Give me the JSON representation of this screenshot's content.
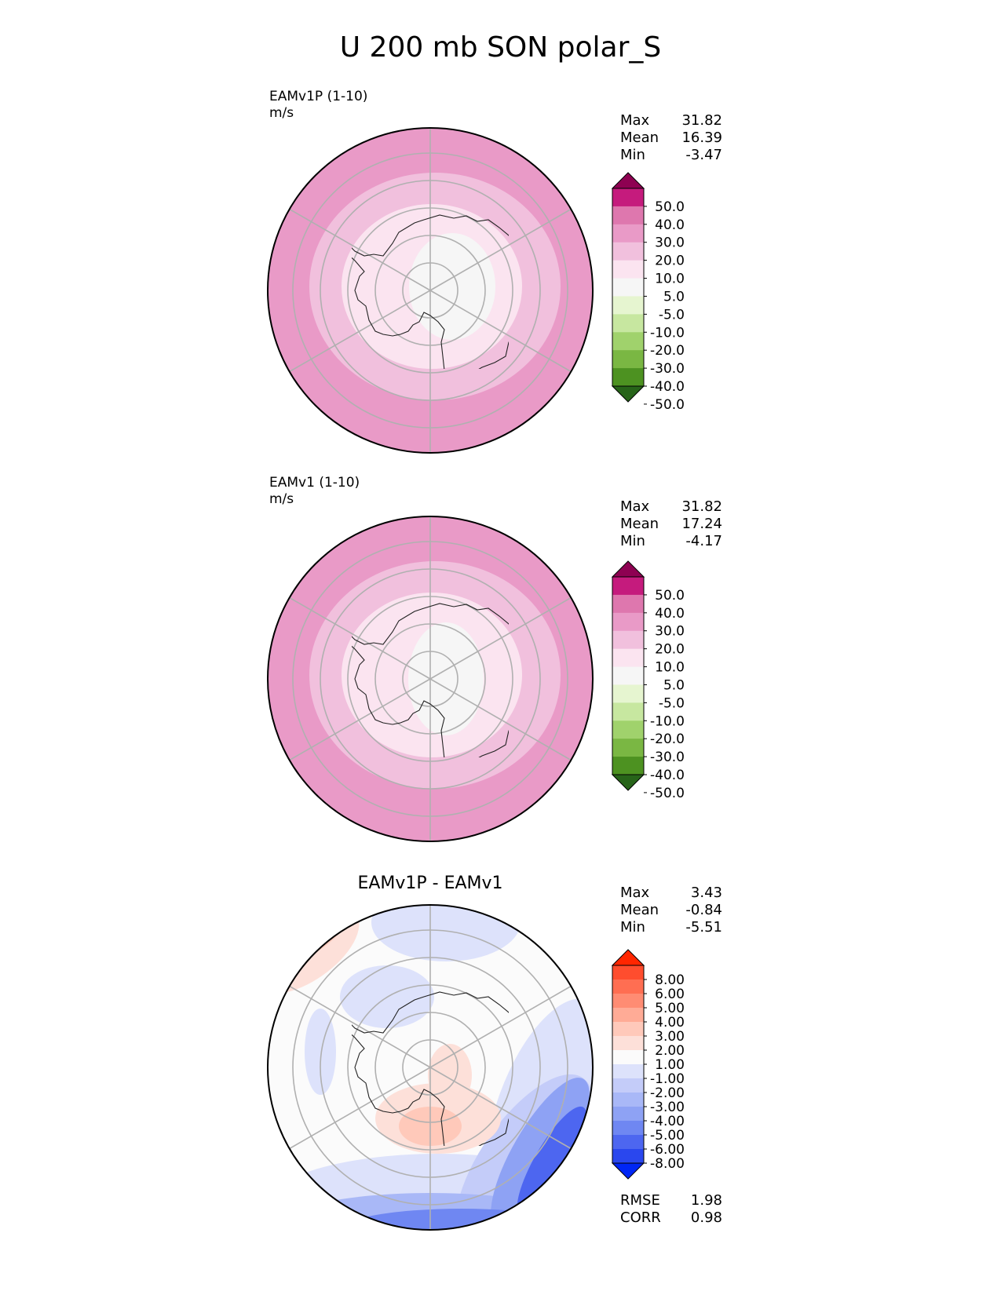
{
  "title": "U 200 mb SON polar_S",
  "panels": [
    {
      "id": "test",
      "label_line1": "EAMv1P (1-10)",
      "label_line2": "m/s",
      "stats": {
        "max_label": "Max",
        "max": "31.82",
        "mean_label": "Mean",
        "mean": "16.39",
        "min_label": "Min",
        "min": "-3.47"
      },
      "colorbar_ticks": [
        "50.0",
        "40.0",
        "30.0",
        "20.0",
        "10.0",
        "5.0",
        "-5.0",
        "-10.0",
        "-20.0",
        "-30.0",
        "-40.0",
        "-50.0"
      ],
      "colors": [
        "#8e0152",
        "#c51b7d",
        "#de77ae",
        "#e99ac7",
        "#f1c0dd",
        "#fbe4f0",
        "#f6f6f6",
        "#e6f5d0",
        "#c7e7a0",
        "#a0d26c",
        "#7ab743",
        "#4d9221",
        "#276419"
      ]
    },
    {
      "id": "reference",
      "label_line1": "EAMv1 (1-10)",
      "label_line2": "m/s",
      "stats": {
        "max_label": "Max",
        "max": "31.82",
        "mean_label": "Mean",
        "mean": "17.24",
        "min_label": "Min",
        "min": "-4.17"
      },
      "colorbar_ticks": [
        "50.0",
        "40.0",
        "30.0",
        "20.0",
        "10.0",
        "5.0",
        "-5.0",
        "-10.0",
        "-20.0",
        "-30.0",
        "-40.0",
        "-50.0"
      ],
      "colors": [
        "#8e0152",
        "#c51b7d",
        "#de77ae",
        "#e99ac7",
        "#f1c0dd",
        "#fbe4f0",
        "#f6f6f6",
        "#e6f5d0",
        "#c7e7a0",
        "#a0d26c",
        "#7ab743",
        "#4d9221",
        "#276419"
      ]
    },
    {
      "id": "difference",
      "title": "EAMv1P - EAMv1",
      "stats": {
        "max_label": "Max",
        "max": "3.43",
        "mean_label": "Mean",
        "mean": "-0.84",
        "min_label": "Min",
        "min": "-5.51"
      },
      "metrics": {
        "rmse_label": "RMSE",
        "rmse": "1.98",
        "corr_label": "CORR",
        "corr": "0.98"
      },
      "colorbar_ticks": [
        "8.00",
        "6.00",
        "5.00",
        "4.00",
        "3.00",
        "2.00",
        "1.00",
        "-1.00",
        "-2.00",
        "-3.00",
        "-4.00",
        "-5.00",
        "-6.00",
        "-8.00"
      ],
      "colors": [
        "#ff2600",
        "#ff4d2e",
        "#ff6e52",
        "#ff8c73",
        "#ffab96",
        "#ffc9ba",
        "#fde0d9",
        "#fbfbfb",
        "#dde2fb",
        "#c4ccf9",
        "#a9b8f7",
        "#8ea2f4",
        "#6f87f2",
        "#4d66f0",
        "#2a47ee",
        "#0026f5"
      ]
    }
  ]
}
